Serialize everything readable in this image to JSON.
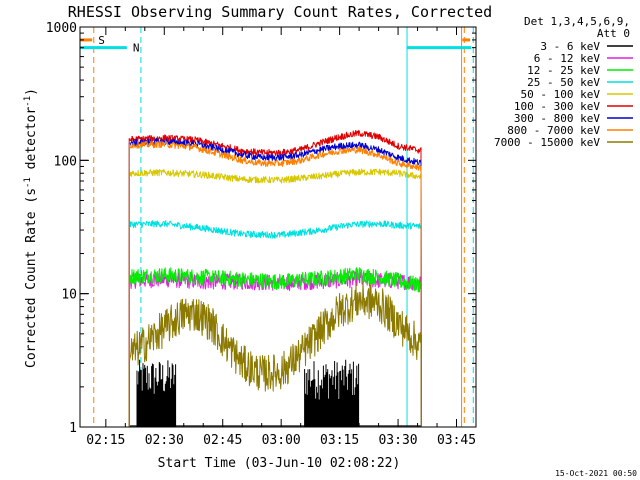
{
  "footer": {
    "timestamp": "15-Oct-2021 00:50"
  },
  "chart_data": {
    "type": "line",
    "title": "RHESSI Observing Summary Count Rates, Corrected",
    "xlabel": "Start Time (03-Jun-10 02:08:22)",
    "ylabel_pre": "Corrected Count Rate (s",
    "ylabel_sup1": "-1",
    "ylabel_mid": " detector",
    "ylabel_sup2": "-1",
    "ylabel_post": ")",
    "y_scale": "log",
    "ylim": [
      1,
      1000
    ],
    "x_start_min": 128.37,
    "xlim": [
      128.37,
      230
    ],
    "x_ticks": [
      {
        "min": 135,
        "label": "02:15"
      },
      {
        "min": 150,
        "label": "02:30"
      },
      {
        "min": 165,
        "label": "02:45"
      },
      {
        "min": 180,
        "label": "03:00"
      },
      {
        "min": 195,
        "label": "03:15"
      },
      {
        "min": 210,
        "label": "03:30"
      },
      {
        "min": 225,
        "label": "03:45"
      }
    ],
    "y_ticks": [
      {
        "value": 1,
        "label": "1"
      },
      {
        "value": 10,
        "label": "10"
      },
      {
        "value": 100,
        "label": "100"
      },
      {
        "value": 1000,
        "label": "1000"
      }
    ],
    "legend": {
      "position": "top-right",
      "header": [
        "Det 1,3,4,5,6,9,",
        "Att 0"
      ],
      "entries": [
        {
          "label": "3 - 6 keV",
          "color": "#000000"
        },
        {
          "label": "6 - 12 keV",
          "color": "#e020e0"
        },
        {
          "label": "12 - 25 keV",
          "color": "#00ee00"
        },
        {
          "label": "25 - 50 keV",
          "color": "#00e0e0"
        },
        {
          "label": "50 - 100 keV",
          "color": "#d8c800"
        },
        {
          "label": "100 - 300 keV",
          "color": "#e00000"
        },
        {
          "label": "300 - 800 keV",
          "color": "#0000d0"
        },
        {
          "label": "800 - 7000 keV",
          "color": "#ff8000"
        },
        {
          "label": "7000 - 15000 keV",
          "color": "#8c7a00"
        }
      ]
    },
    "flags": [
      {
        "label": "S",
        "color": "#ff8000",
        "level": 800,
        "spans": [
          [
            128.37,
            131.5
          ],
          [
            226.5,
            228.5
          ]
        ]
      },
      {
        "label": "N",
        "color": "#00e0e0",
        "level": 700,
        "spans": [
          [
            128.37,
            140.4
          ],
          [
            212.2,
            228.8
          ]
        ]
      }
    ],
    "vlines": [
      {
        "min": 131.9,
        "color": "#ff8000",
        "style": "dashed"
      },
      {
        "min": 227.0,
        "color": "#ff8000",
        "style": "dashed"
      },
      {
        "min": 144.0,
        "color": "#00e0e0",
        "style": "dashed"
      },
      {
        "min": 229.3,
        "color": "#00e0e0",
        "style": "dashed"
      },
      {
        "min": 212.3,
        "color": "#00e0e0",
        "style": "solid"
      },
      {
        "min": 226.3,
        "color": "#ff8000",
        "style": "solid"
      }
    ],
    "data_window": [
      141.0,
      216.0
    ],
    "series": [
      {
        "name": "3 - 6 keV",
        "color": "#000000",
        "kind": "spiky",
        "points": [
          [
            143.0,
            1.2
          ],
          [
            148.0,
            1.2
          ],
          [
            150.0,
            1.2
          ],
          [
            152.0,
            1.2
          ],
          [
            153.0,
            1.2
          ],
          [
            185.0,
            1.2
          ],
          [
            187.0,
            1.2
          ],
          [
            195.0,
            1.2
          ],
          [
            200.0,
            1.2
          ],
          [
            210.0,
            1.2
          ]
        ]
      },
      {
        "name": "6 - 12 keV",
        "color": "#e020e0",
        "points": [
          [
            141.0,
            12.5
          ],
          [
            150.0,
            12.8
          ],
          [
            160.0,
            12.3
          ],
          [
            170.0,
            12.3
          ],
          [
            180.0,
            12.0
          ],
          [
            190.0,
            12.4
          ],
          [
            200.0,
            12.8
          ],
          [
            210.0,
            12.4
          ],
          [
            216.0,
            12.0
          ]
        ]
      },
      {
        "name": "12 - 25 keV",
        "color": "#00ee00",
        "points": [
          [
            141.0,
            13.5
          ],
          [
            150.0,
            13.8
          ],
          [
            160.0,
            13.3
          ],
          [
            170.0,
            12.8
          ],
          [
            180.0,
            12.3
          ],
          [
            190.0,
            13.0
          ],
          [
            200.0,
            14.0
          ],
          [
            210.0,
            12.5
          ],
          [
            216.0,
            11.5
          ]
        ]
      },
      {
        "name": "25 - 50 keV",
        "color": "#00e0e0",
        "points": [
          [
            141.0,
            33.0
          ],
          [
            150.0,
            33.5
          ],
          [
            160.0,
            31.0
          ],
          [
            170.0,
            28.0
          ],
          [
            180.0,
            27.5
          ],
          [
            190.0,
            30.0
          ],
          [
            198.0,
            33.0
          ],
          [
            205.0,
            33.5
          ],
          [
            210.0,
            32.5
          ],
          [
            216.0,
            32.0
          ]
        ]
      },
      {
        "name": "50 - 100 keV",
        "color": "#d8c800",
        "points": [
          [
            141.0,
            80.0
          ],
          [
            150.0,
            81.0
          ],
          [
            160.0,
            78.0
          ],
          [
            170.0,
            72.0
          ],
          [
            180.0,
            71.0
          ],
          [
            190.0,
            76.0
          ],
          [
            198.0,
            81.0
          ],
          [
            205.0,
            82.0
          ],
          [
            210.0,
            80.0
          ],
          [
            216.0,
            75.0
          ]
        ]
      },
      {
        "name": "100 - 300 keV",
        "color": "#e00000",
        "points": [
          [
            141.0,
            143.0
          ],
          [
            150.0,
            147.0
          ],
          [
            158.0,
            142.0
          ],
          [
            165.0,
            128.0
          ],
          [
            170.0,
            118.0
          ],
          [
            175.0,
            114.0
          ],
          [
            180.0,
            114.0
          ],
          [
            185.0,
            120.0
          ],
          [
            190.0,
            135.0
          ],
          [
            195.0,
            150.0
          ],
          [
            200.0,
            160.0
          ],
          [
            205.0,
            150.0
          ],
          [
            210.0,
            128.0
          ],
          [
            216.0,
            118.0
          ]
        ]
      },
      {
        "name": "300 - 800 keV",
        "color": "#0000d0",
        "points": [
          [
            141.0,
            135.0
          ],
          [
            150.0,
            138.0
          ],
          [
            158.0,
            133.0
          ],
          [
            165.0,
            120.0
          ],
          [
            170.0,
            110.0
          ],
          [
            175.0,
            105.0
          ],
          [
            180.0,
            105.0
          ],
          [
            185.0,
            110.0
          ],
          [
            190.0,
            120.0
          ],
          [
            195.0,
            128.0
          ],
          [
            200.0,
            130.0
          ],
          [
            205.0,
            120.0
          ],
          [
            210.0,
            105.0
          ],
          [
            216.0,
            95.0
          ]
        ]
      },
      {
        "name": "800 - 7000 keV",
        "color": "#ff8000",
        "points": [
          [
            141.0,
            130.0
          ],
          [
            150.0,
            132.0
          ],
          [
            158.0,
            125.0
          ],
          [
            165.0,
            110.0
          ],
          [
            170.0,
            100.0
          ],
          [
            175.0,
            95.0
          ],
          [
            180.0,
            95.0
          ],
          [
            185.0,
            100.0
          ],
          [
            190.0,
            110.0
          ],
          [
            195.0,
            118.0
          ],
          [
            200.0,
            120.0
          ],
          [
            205.0,
            110.0
          ],
          [
            210.0,
            95.0
          ],
          [
            216.0,
            88.0
          ]
        ]
      },
      {
        "name": "7000 - 15000 keV",
        "color": "#8c7a00",
        "points": [
          [
            141.0,
            3.5
          ],
          [
            145.0,
            4.2
          ],
          [
            150.0,
            5.5
          ],
          [
            155.0,
            7.0
          ],
          [
            158.0,
            7.2
          ],
          [
            162.0,
            6.0
          ],
          [
            165.0,
            4.5
          ],
          [
            170.0,
            3.0
          ],
          [
            175.0,
            2.5
          ],
          [
            180.0,
            2.6
          ],
          [
            185.0,
            3.5
          ],
          [
            190.0,
            5.2
          ],
          [
            195.0,
            7.5
          ],
          [
            200.0,
            9.0
          ],
          [
            205.0,
            8.5
          ],
          [
            210.0,
            6.0
          ],
          [
            216.0,
            4.0
          ]
        ]
      }
    ]
  }
}
